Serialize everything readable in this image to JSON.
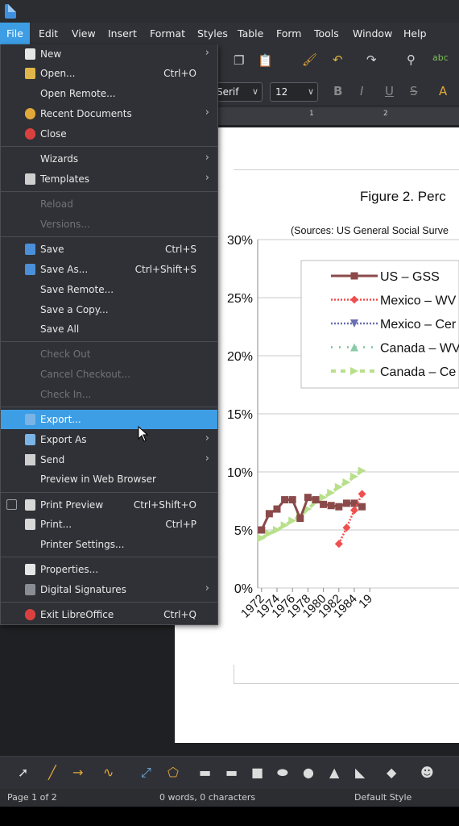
{
  "menubar": [
    "File",
    "Edit",
    "View",
    "Insert",
    "Format",
    "Styles",
    "Table",
    "Form",
    "Tools",
    "Window",
    "Help"
  ],
  "formatting": {
    "font_name": "Serif",
    "font_size": "12"
  },
  "ruler_numbers": [
    "1",
    "1",
    "2"
  ],
  "document": {
    "figure_title": "Figure 2. Perc",
    "figure_subtitle": "(Sources: US General Social Surve"
  },
  "chart_data": {
    "type": "line",
    "y_ticks": [
      "30%",
      "25%",
      "20%",
      "15%",
      "10%",
      "5%",
      "0%"
    ],
    "ylim": [
      0,
      30
    ],
    "x_tick_labels": [
      "1972",
      "1974",
      "1976",
      "1978",
      "1980",
      "1982",
      "1984",
      "19"
    ],
    "legend": [
      "US – GSS",
      "Mexico – WV",
      "Mexico – Cer",
      "Canada – WV",
      "Canada – Ce"
    ],
    "legend_colors": [
      "#8b4a4a",
      "#f04f4f",
      "#6a6fb0",
      "#8ccba8",
      "#b8e08c"
    ],
    "series": [
      {
        "name": "US – GSS",
        "x": [
          1972,
          1973,
          1974,
          1975,
          1976,
          1977,
          1978,
          1979,
          1980,
          1981,
          1982,
          1983,
          1984,
          1985
        ],
        "values": [
          5.0,
          6.4,
          6.8,
          7.6,
          7.6,
          6.0,
          7.8,
          7.6,
          7.2,
          7.1,
          7.0,
          7.3,
          7.3,
          7.0
        ]
      },
      {
        "name": "Mexico – WV",
        "x": [
          1982,
          1983,
          1984,
          1985
        ],
        "values": [
          3.8,
          5.2,
          6.7,
          8.1
        ]
      },
      {
        "name": "Canada – Ce",
        "x": [
          1972,
          1973,
          1974,
          1975,
          1976,
          1977,
          1978,
          1979,
          1980,
          1981,
          1982,
          1983,
          1984,
          1985
        ],
        "values": [
          4.3,
          4.7,
          5.0,
          5.4,
          5.8,
          6.2,
          6.8,
          7.4,
          7.8,
          8.2,
          8.7,
          9.1,
          9.6,
          10.1
        ]
      }
    ]
  },
  "file_menu": {
    "items": [
      {
        "label": "New",
        "shortcut": "",
        "submenu": true,
        "disabled": false
      },
      {
        "label": "Open...",
        "shortcut": "Ctrl+O",
        "submenu": false,
        "disabled": false
      },
      {
        "label": "Open Remote...",
        "shortcut": "",
        "submenu": false,
        "disabled": false
      },
      {
        "label": "Recent Documents",
        "shortcut": "",
        "submenu": true,
        "disabled": false
      },
      {
        "label": "Close",
        "shortcut": "",
        "submenu": false,
        "disabled": false
      },
      {
        "label": "Wizards",
        "shortcut": "",
        "submenu": true,
        "disabled": false
      },
      {
        "label": "Templates",
        "shortcut": "",
        "submenu": true,
        "disabled": false
      },
      {
        "label": "Reload",
        "shortcut": "",
        "submenu": false,
        "disabled": true
      },
      {
        "label": "Versions...",
        "shortcut": "",
        "submenu": false,
        "disabled": true
      },
      {
        "label": "Save",
        "shortcut": "Ctrl+S",
        "submenu": false,
        "disabled": false
      },
      {
        "label": "Save As...",
        "shortcut": "Ctrl+Shift+S",
        "submenu": false,
        "disabled": false
      },
      {
        "label": "Save Remote...",
        "shortcut": "",
        "submenu": false,
        "disabled": false
      },
      {
        "label": "Save a Copy...",
        "shortcut": "",
        "submenu": false,
        "disabled": false
      },
      {
        "label": "Save All",
        "shortcut": "",
        "submenu": false,
        "disabled": false
      },
      {
        "label": "Check Out",
        "shortcut": "",
        "submenu": false,
        "disabled": true
      },
      {
        "label": "Cancel Checkout...",
        "shortcut": "",
        "submenu": false,
        "disabled": true
      },
      {
        "label": "Check In...",
        "shortcut": "",
        "submenu": false,
        "disabled": true
      },
      {
        "label": "Export...",
        "shortcut": "",
        "submenu": false,
        "disabled": false,
        "highlighted": true
      },
      {
        "label": "Export As",
        "shortcut": "",
        "submenu": true,
        "disabled": false
      },
      {
        "label": "Send",
        "shortcut": "",
        "submenu": true,
        "disabled": false
      },
      {
        "label": "Preview in Web Browser",
        "shortcut": "",
        "submenu": false,
        "disabled": false
      },
      {
        "label": "Print Preview",
        "shortcut": "Ctrl+Shift+O",
        "submenu": false,
        "disabled": false
      },
      {
        "label": "Print...",
        "shortcut": "Ctrl+P",
        "submenu": false,
        "disabled": false
      },
      {
        "label": "Printer Settings...",
        "shortcut": "",
        "submenu": false,
        "disabled": false
      },
      {
        "label": "Properties...",
        "shortcut": "",
        "submenu": false,
        "disabled": false
      },
      {
        "label": "Digital Signatures",
        "shortcut": "",
        "submenu": true,
        "disabled": false
      },
      {
        "label": "Exit LibreOffice",
        "shortcut": "Ctrl+Q",
        "submenu": false,
        "disabled": false
      }
    ]
  },
  "statusbar": {
    "page": "Page 1 of 2",
    "words": "0 words, 0 characters",
    "style": "Default Style"
  }
}
